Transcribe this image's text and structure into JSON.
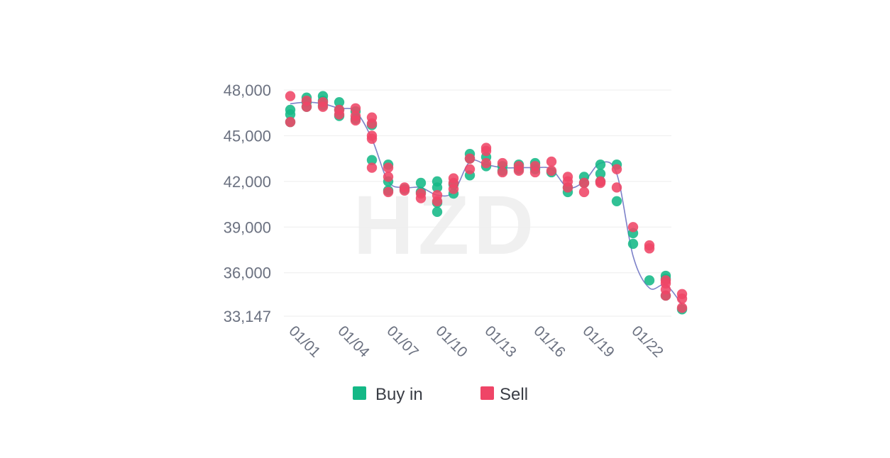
{
  "watermark": "HZD",
  "colors": {
    "buy": "#14b886",
    "sell": "#ef4567",
    "trend": "#7d82c9",
    "grid": "#eeeeee"
  },
  "chart_data": {
    "type": "scatter",
    "title": "",
    "xlabel": "",
    "ylabel": "",
    "ylim": [
      33147,
      48000
    ],
    "yticks": [
      33147,
      36000,
      39000,
      42000,
      45000,
      48000
    ],
    "ytick_labels": [
      "33,147",
      "36,000",
      "39,000",
      "42,000",
      "45,000",
      "48,000"
    ],
    "xlim": [
      1,
      24
    ],
    "xticks": [
      1,
      4,
      7,
      10,
      13,
      16,
      19,
      22
    ],
    "xtick_labels": [
      "01/01",
      "01/04",
      "01/07",
      "01/10",
      "01/13",
      "01/16",
      "01/19",
      "01/22"
    ],
    "grid": true,
    "legend_position": "bottom",
    "series": [
      {
        "name": "Buy in",
        "points": [
          [
            1,
            46700
          ],
          [
            1,
            46400
          ],
          [
            1,
            45900
          ],
          [
            2,
            47500
          ],
          [
            2,
            47200
          ],
          [
            2,
            46900
          ],
          [
            3,
            47600
          ],
          [
            3,
            47300
          ],
          [
            3,
            47000
          ],
          [
            4,
            47200
          ],
          [
            4,
            46700
          ],
          [
            4,
            46300
          ],
          [
            5,
            46600
          ],
          [
            5,
            46100
          ],
          [
            6,
            45700
          ],
          [
            6,
            43400
          ],
          [
            7,
            43100
          ],
          [
            7,
            42000
          ],
          [
            7,
            41400
          ],
          [
            8,
            41500
          ],
          [
            9,
            41900
          ],
          [
            9,
            41300
          ],
          [
            10,
            42000
          ],
          [
            10,
            41600
          ],
          [
            10,
            40600
          ],
          [
            10,
            40000
          ],
          [
            11,
            41200
          ],
          [
            11,
            41800
          ],
          [
            12,
            43800
          ],
          [
            12,
            43500
          ],
          [
            12,
            42400
          ],
          [
            13,
            43600
          ],
          [
            13,
            43000
          ],
          [
            14,
            43000
          ],
          [
            14,
            42700
          ],
          [
            15,
            43100
          ],
          [
            15,
            42800
          ],
          [
            16,
            43200
          ],
          [
            16,
            42800
          ],
          [
            17,
            42600
          ],
          [
            18,
            41300
          ],
          [
            18,
            41600
          ],
          [
            19,
            42300
          ],
          [
            19,
            41900
          ],
          [
            20,
            43100
          ],
          [
            20,
            42500
          ],
          [
            20,
            42000
          ],
          [
            21,
            43100
          ],
          [
            21,
            40700
          ],
          [
            22,
            38600
          ],
          [
            22,
            37900
          ],
          [
            23,
            35500
          ],
          [
            24,
            35800
          ],
          [
            24,
            35600
          ],
          [
            24,
            34500
          ],
          [
            25,
            33600
          ]
        ]
      },
      {
        "name": "Sell",
        "points": [
          [
            1,
            47600
          ],
          [
            1,
            45900
          ],
          [
            2,
            47300
          ],
          [
            2,
            46900
          ],
          [
            3,
            47200
          ],
          [
            3,
            46900
          ],
          [
            4,
            46700
          ],
          [
            4,
            46400
          ],
          [
            5,
            46800
          ],
          [
            5,
            46300
          ],
          [
            5,
            46000
          ],
          [
            6,
            46200
          ],
          [
            6,
            45800
          ],
          [
            6,
            45000
          ],
          [
            6,
            44800
          ],
          [
            6,
            42900
          ],
          [
            7,
            42900
          ],
          [
            7,
            42300
          ],
          [
            7,
            41300
          ],
          [
            8,
            41600
          ],
          [
            8,
            41400
          ],
          [
            9,
            41200
          ],
          [
            9,
            40900
          ],
          [
            10,
            41100
          ],
          [
            10,
            40700
          ],
          [
            11,
            42200
          ],
          [
            11,
            41900
          ],
          [
            11,
            41500
          ],
          [
            12,
            43500
          ],
          [
            12,
            42800
          ],
          [
            13,
            44200
          ],
          [
            13,
            44000
          ],
          [
            13,
            43200
          ],
          [
            14,
            43200
          ],
          [
            14,
            42600
          ],
          [
            15,
            43000
          ],
          [
            15,
            42700
          ],
          [
            16,
            43000
          ],
          [
            16,
            42600
          ],
          [
            17,
            43300
          ],
          [
            17,
            42700
          ],
          [
            18,
            42300
          ],
          [
            18,
            42000
          ],
          [
            18,
            41600
          ],
          [
            19,
            41900
          ],
          [
            19,
            41300
          ],
          [
            20,
            42000
          ],
          [
            20,
            41900
          ],
          [
            21,
            42800
          ],
          [
            21,
            41600
          ],
          [
            22,
            39000
          ],
          [
            23,
            37800
          ],
          [
            23,
            37600
          ],
          [
            24,
            35500
          ],
          [
            24,
            35300
          ],
          [
            24,
            34900
          ],
          [
            24,
            34500
          ],
          [
            25,
            34600
          ],
          [
            25,
            34300
          ],
          [
            25,
            33700
          ]
        ]
      }
    ],
    "trend_line": [
      [
        1,
        47100
      ],
      [
        2,
        47200
      ],
      [
        3,
        47100
      ],
      [
        4,
        46800
      ],
      [
        5,
        46600
      ],
      [
        6,
        44800
      ],
      [
        7,
        42000
      ],
      [
        8,
        41600
      ],
      [
        9,
        41600
      ],
      [
        10,
        41100
      ],
      [
        11,
        41300
      ],
      [
        12,
        43300
      ],
      [
        13,
        43100
      ],
      [
        14,
        42900
      ],
      [
        15,
        42900
      ],
      [
        16,
        42900
      ],
      [
        17,
        42800
      ],
      [
        18,
        41600
      ],
      [
        19,
        42000
      ],
      [
        20,
        43200
      ],
      [
        21,
        42500
      ],
      [
        22,
        37100
      ],
      [
        23,
        35000
      ],
      [
        24,
        35200
      ],
      [
        25,
        33900
      ]
    ]
  }
}
